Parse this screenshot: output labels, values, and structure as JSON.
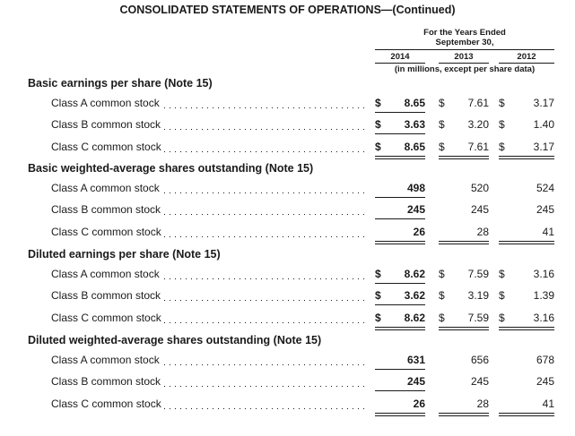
{
  "title": "CONSOLIDATED STATEMENTS OF OPERATIONS—(Continued)",
  "header": {
    "period_line1": "For the Years Ended",
    "period_line2": "September 30,",
    "years": [
      "2014",
      "2013",
      "2012"
    ],
    "units": "(in millions, except per share data)"
  },
  "sections": [
    {
      "title": "Basic earnings per share (Note 15)",
      "rows": [
        {
          "label": "Class A common stock",
          "values": [
            {
              "d": "$",
              "v": "8.65"
            },
            {
              "d": "$",
              "v": "7.61"
            },
            {
              "d": "$",
              "v": "3.17"
            }
          ]
        },
        {
          "label": "Class B common stock",
          "values": [
            {
              "d": "$",
              "v": "3.63"
            },
            {
              "d": "$",
              "v": "3.20"
            },
            {
              "d": "$",
              "v": "1.40"
            }
          ]
        },
        {
          "label": "Class C common stock",
          "values": [
            {
              "d": "$",
              "v": "8.65"
            },
            {
              "d": "$",
              "v": "7.61"
            },
            {
              "d": "$",
              "v": "3.17"
            }
          ]
        }
      ]
    },
    {
      "title": "Basic weighted-average shares outstanding (Note 15)",
      "rows": [
        {
          "label": "Class A common stock",
          "values": [
            {
              "d": "",
              "v": "498"
            },
            {
              "d": "",
              "v": "520"
            },
            {
              "d": "",
              "v": "524"
            }
          ]
        },
        {
          "label": "Class B common stock",
          "values": [
            {
              "d": "",
              "v": "245"
            },
            {
              "d": "",
              "v": "245"
            },
            {
              "d": "",
              "v": "245"
            }
          ]
        },
        {
          "label": "Class C common stock",
          "values": [
            {
              "d": "",
              "v": "26"
            },
            {
              "d": "",
              "v": "28"
            },
            {
              "d": "",
              "v": "41"
            }
          ]
        }
      ]
    },
    {
      "title": "Diluted earnings per share (Note 15)",
      "rows": [
        {
          "label": "Class A common stock",
          "values": [
            {
              "d": "$",
              "v": "8.62"
            },
            {
              "d": "$",
              "v": "7.59"
            },
            {
              "d": "$",
              "v": "3.16"
            }
          ]
        },
        {
          "label": "Class B common stock",
          "values": [
            {
              "d": "$",
              "v": "3.62"
            },
            {
              "d": "$",
              "v": "3.19"
            },
            {
              "d": "$",
              "v": "1.39"
            }
          ]
        },
        {
          "label": "Class C common stock",
          "values": [
            {
              "d": "$",
              "v": "8.62"
            },
            {
              "d": "$",
              "v": "7.59"
            },
            {
              "d": "$",
              "v": "3.16"
            }
          ]
        }
      ]
    },
    {
      "title": "Diluted weighted-average shares outstanding (Note 15)",
      "rows": [
        {
          "label": "Class A common stock",
          "values": [
            {
              "d": "",
              "v": "631"
            },
            {
              "d": "",
              "v": "656"
            },
            {
              "d": "",
              "v": "678"
            }
          ]
        },
        {
          "label": "Class B common stock",
          "values": [
            {
              "d": "",
              "v": "245"
            },
            {
              "d": "",
              "v": "245"
            },
            {
              "d": "",
              "v": "245"
            }
          ]
        },
        {
          "label": "Class C common stock",
          "values": [
            {
              "d": "",
              "v": "26"
            },
            {
              "d": "",
              "v": "28"
            },
            {
              "d": "",
              "v": "41"
            }
          ]
        }
      ]
    }
  ]
}
